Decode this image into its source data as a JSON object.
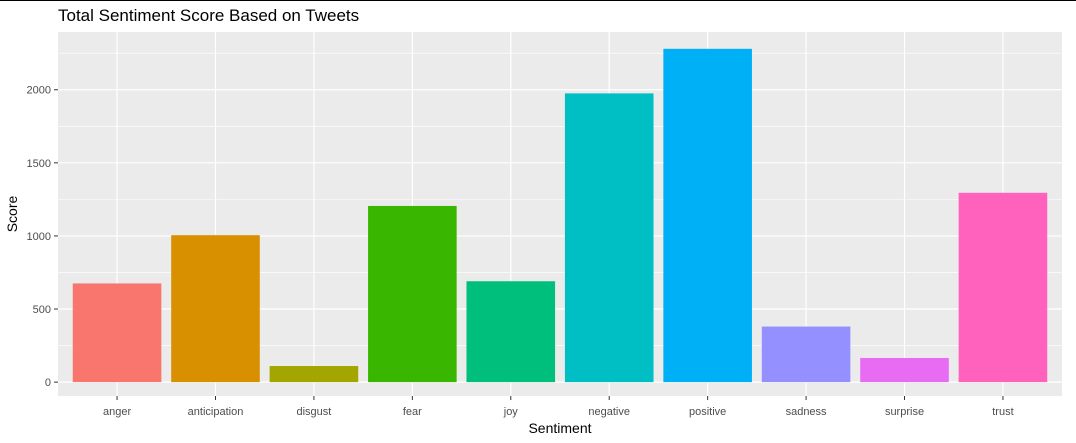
{
  "chart_data": {
    "type": "bar",
    "title": "Total Sentiment Score Based on Tweets",
    "xlabel": "Sentiment",
    "ylabel": "Score",
    "categories": [
      "anger",
      "anticipation",
      "disgust",
      "fear",
      "joy",
      "negative",
      "positive",
      "sadness",
      "surprise",
      "trust"
    ],
    "values": [
      675,
      1005,
      110,
      1205,
      690,
      1975,
      2280,
      380,
      165,
      1295
    ],
    "colors": [
      "#F8766D",
      "#D89000",
      "#A3A500",
      "#39B600",
      "#00BF7D",
      "#00BFC4",
      "#00B0F6",
      "#9590FF",
      "#E76BF3",
      "#FF62BC"
    ],
    "ylim": [
      -95,
      2395
    ],
    "yticks": [
      0,
      500,
      1000,
      1500,
      2000
    ],
    "ytick_labels": [
      "0",
      "500",
      "1000",
      "1500",
      "2000"
    ],
    "grid": true,
    "legend": "none",
    "panel_background": "#EBEBEB",
    "grid_color": "#FFFFFF"
  }
}
